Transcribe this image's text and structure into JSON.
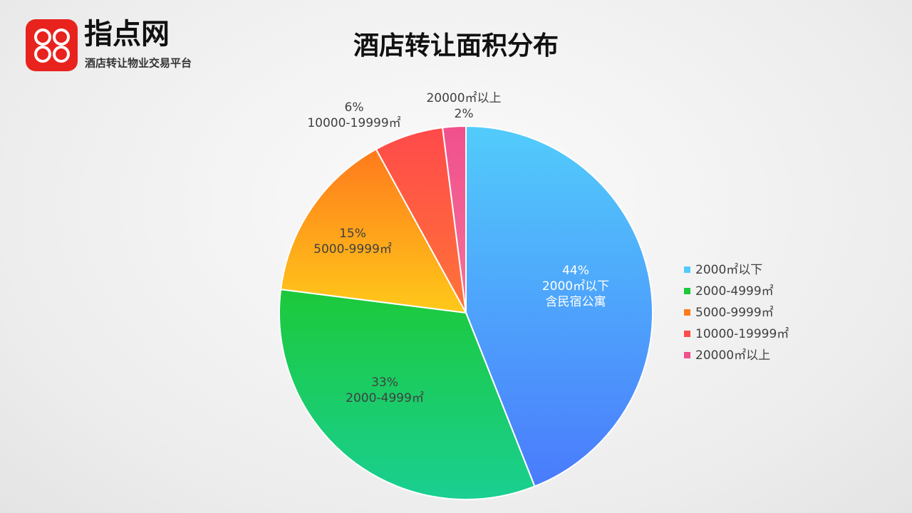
{
  "brand": {
    "name": "指点网",
    "tagline": "酒店转让物业交易平台"
  },
  "chart_data": {
    "type": "pie",
    "title": "酒店转让面积分布",
    "categories": [
      "2000㎡以下",
      "2000-4999㎡",
      "5000-9999㎡",
      "10000-19999㎡",
      "20000㎡以上"
    ],
    "values": [
      44,
      33,
      15,
      6,
      2
    ],
    "value_labels": [
      "44%",
      "33%",
      "15%",
      "6%",
      "2%"
    ],
    "annotation": "含民宿公寓",
    "colors": [
      [
        "#52ccfb",
        "#4a7bfc"
      ],
      [
        "#1cc93a",
        "#1acf92"
      ],
      [
        "#ff7a1c",
        "#ffc91a"
      ],
      [
        "#ff4a4a",
        "#ff7438"
      ],
      [
        "#f0508c",
        "#f6709a"
      ]
    ],
    "legend": "right"
  }
}
